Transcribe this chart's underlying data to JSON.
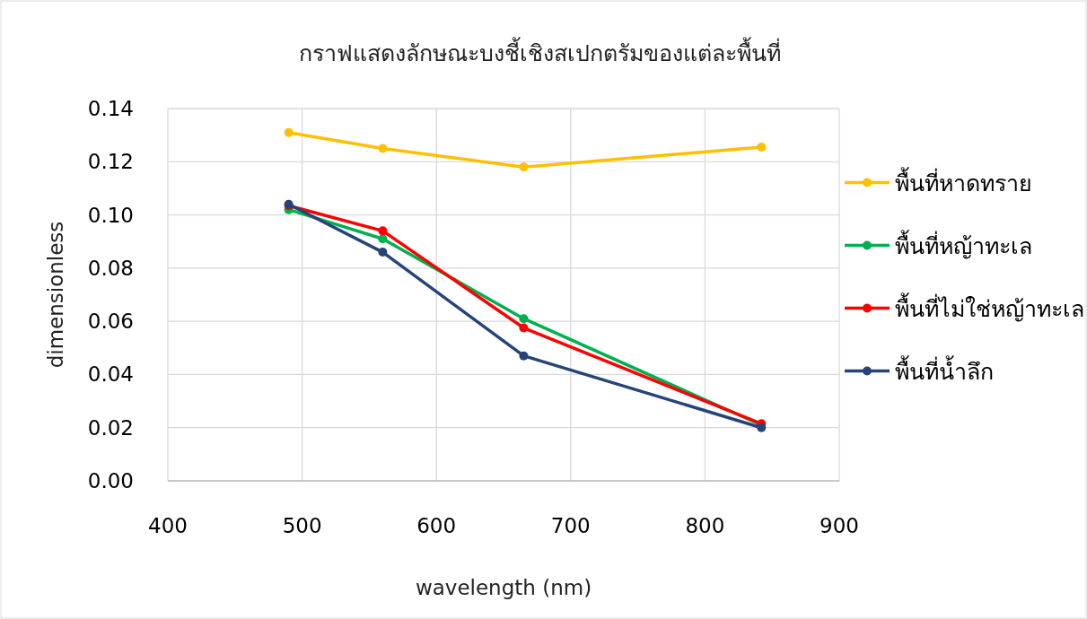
{
  "chart_data": {
    "type": "line",
    "title": "กราฟแสดงลักษณะบงชี้เชิงสเปกตรัมของแต่ละพื้นที่",
    "xlabel": "wavelength (nm)",
    "ylabel": "dimensionless",
    "x": [
      490,
      560,
      665,
      842
    ],
    "series": [
      {
        "name": "พื้นที่หาดทราย",
        "color": "#ffc000",
        "values": [
          0.131,
          0.125,
          0.118,
          0.1255
        ]
      },
      {
        "name": "พื้นที่หญ้าทะเล",
        "color": "#00b050",
        "values": [
          0.102,
          0.091,
          0.061,
          0.021
        ]
      },
      {
        "name": "พื้นที่ไม่ใช่หญ้าทะเล",
        "color": "#ff0000",
        "values": [
          0.1035,
          0.094,
          0.0575,
          0.0215
        ]
      },
      {
        "name": "พื้นที่น้ำลึก",
        "color": "#264478",
        "values": [
          0.104,
          0.086,
          0.047,
          0.02
        ]
      }
    ],
    "xlim": [
      400,
      900
    ],
    "xticks": [
      400,
      500,
      600,
      700,
      800,
      900
    ],
    "ylim": [
      0,
      0.14
    ],
    "yticks": [
      {
        "value": 0,
        "label": "0.00"
      },
      {
        "value": 0.02,
        "label": "0.02"
      },
      {
        "value": 0.04,
        "label": "0.04"
      },
      {
        "value": 0.06,
        "label": "0.06"
      },
      {
        "value": 0.08,
        "label": "0.08"
      },
      {
        "value": 0.1,
        "label": "0.10"
      },
      {
        "value": 0.12,
        "label": "0.12"
      },
      {
        "value": 0.14,
        "label": "0.14"
      }
    ],
    "grid": true,
    "legend": "right",
    "marker": "circle",
    "line_style": "solid"
  }
}
